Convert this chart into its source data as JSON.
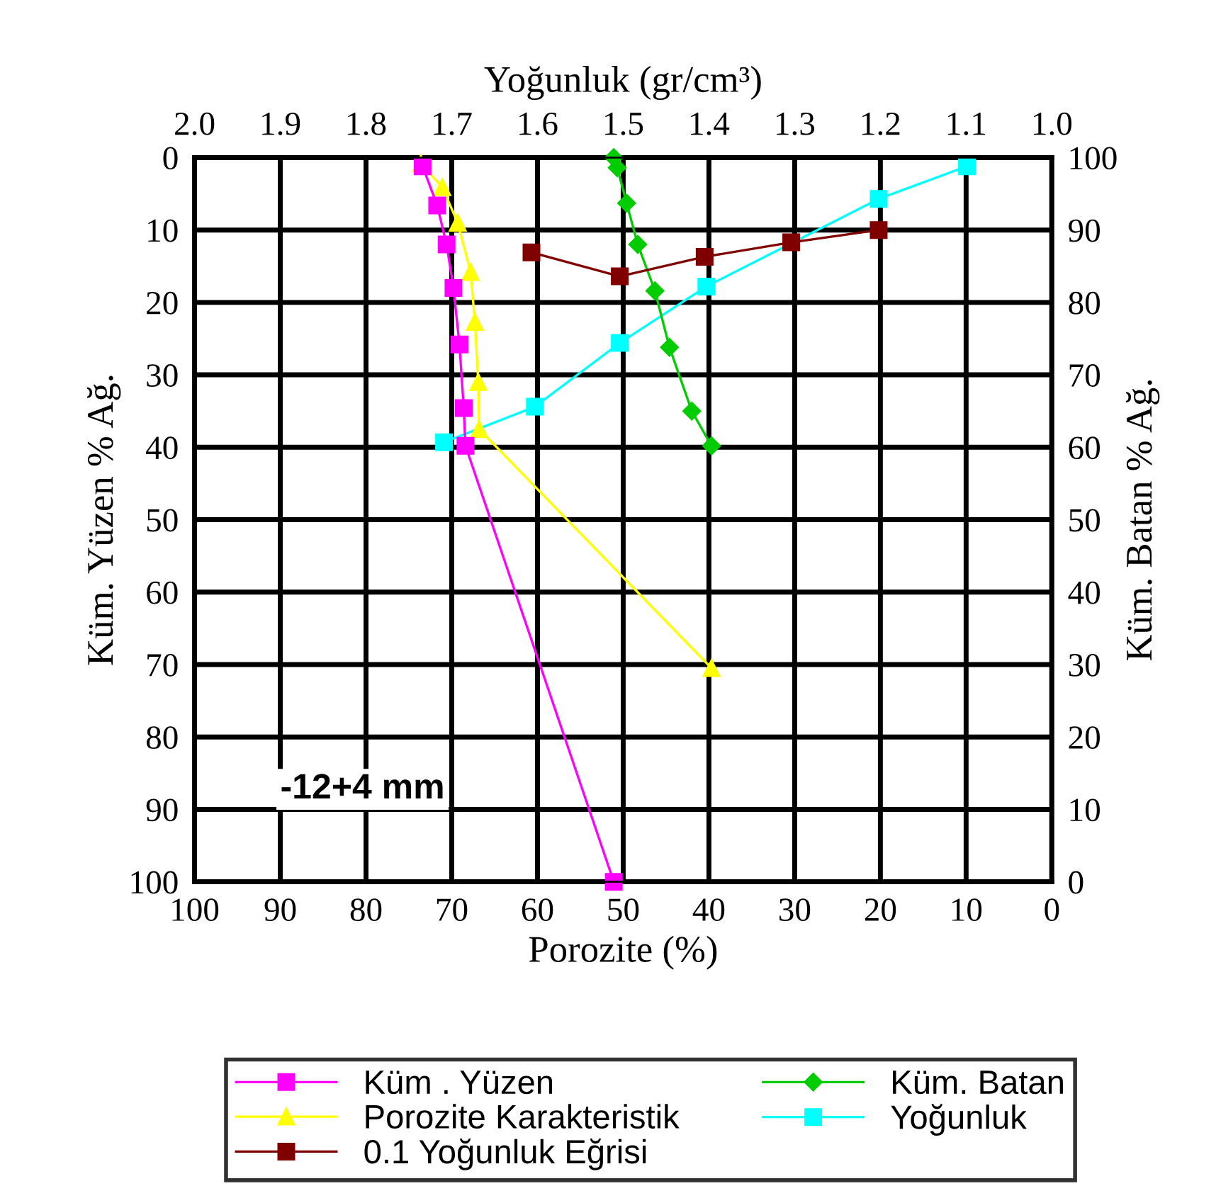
{
  "chart_data": {
    "type": "line",
    "xlabel": "Porozite (%)",
    "ylabel": "Küm. Yüzen % Ağ.",
    "x2label": "Yoğunluk (gr/cm³)",
    "y2label": "Küm. Batan % Ağ.",
    "annotations": [
      "-12+4 mm"
    ],
    "xlim": [
      100,
      0
    ],
    "xticks": [
      100,
      90,
      80,
      70,
      60,
      50,
      40,
      30,
      20,
      10,
      0
    ],
    "ylim": [
      100,
      0
    ],
    "yticks": [
      0,
      10,
      20,
      30,
      40,
      50,
      60,
      70,
      80,
      90,
      100
    ],
    "x2lim": [
      2.0,
      1.0
    ],
    "x2ticks": [
      {
        "value": 2.0,
        "label": "2.0"
      },
      1.9,
      1.8,
      1.7,
      1.6,
      1.5,
      1.4,
      1.3,
      1.2,
      1.1,
      {
        "value": 1.0,
        "label": "1.0"
      }
    ],
    "y2lim": [
      0,
      100
    ],
    "y2ticks": [
      0,
      10,
      20,
      30,
      40,
      50,
      60,
      70,
      80,
      90,
      100
    ],
    "grid": true,
    "legend": "bottom",
    "series": [
      {
        "name": "Küm . Yüzen",
        "color": "#ff00ff",
        "marker": "square",
        "x": [
          73.4,
          71.7,
          70.6,
          69.8,
          69.1,
          68.6,
          68.4,
          51.1
        ],
        "values": [
          1.2,
          6.6,
          12,
          18,
          25.8,
          34.6,
          39.8,
          100
        ]
      },
      {
        "name": "Porozite Karakteristik",
        "color": "#ffff00",
        "marker": "triangle",
        "x": [
          73.6,
          71.1,
          69.3,
          67.8,
          67.3,
          66.9,
          66.8,
          39.7
        ],
        "values": [
          0.8,
          4.1,
          9,
          15.8,
          22.7,
          31,
          37.5,
          70.5
        ]
      },
      {
        "name": "0.1 Yoğunluk Eğrisi",
        "color": "#800000",
        "marker": "square",
        "x": [
          60.7,
          50.4,
          40.5,
          30.4,
          20.2
        ],
        "values": [
          13.1,
          16.4,
          13.7,
          11.7,
          10
        ]
      },
      {
        "name": "Küm. Batan",
        "color": "#00cc00",
        "marker": "diamond",
        "x": [
          51.1,
          50.7,
          49.6,
          48.3,
          46.3,
          44.6,
          42,
          39.7
        ],
        "values": [
          0,
          1.4,
          6.3,
          12,
          18.4,
          26.2,
          35,
          39.8
        ]
      },
      {
        "name": "Yoğunluk",
        "color": "#00ffff",
        "marker": "square",
        "x": [
          9.9,
          20.2,
          40.3,
          50.4,
          60.3,
          70.9
        ],
        "values": [
          1.2,
          5.7,
          17.8,
          25.6,
          34.4,
          39.3
        ]
      }
    ]
  }
}
